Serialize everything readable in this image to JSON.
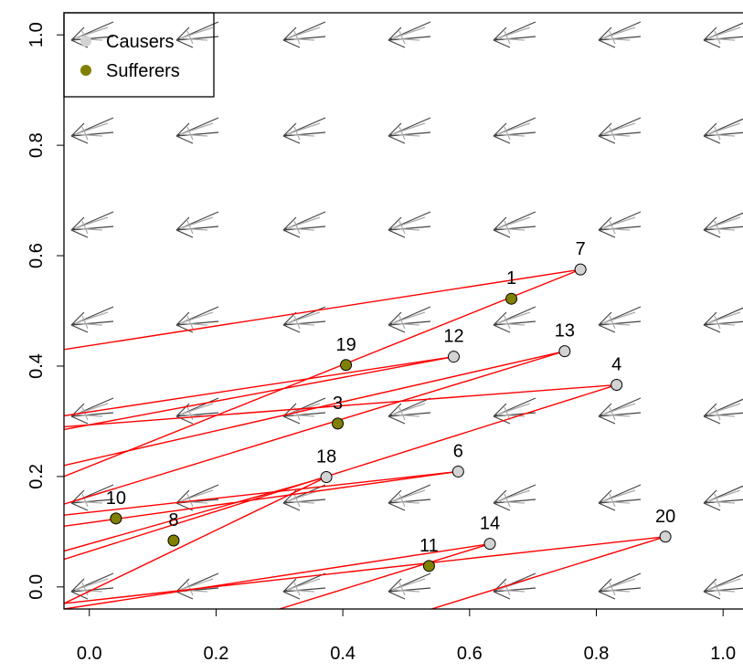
{
  "chart_data": {
    "type": "scatter",
    "xlim": [
      -0.04,
      1.03
    ],
    "ylim": [
      -0.04,
      1.04
    ],
    "xticks": [
      {
        "value": 0,
        "label": "0.0"
      },
      {
        "value": 0.2,
        "label": "0.2"
      },
      {
        "value": 0.4,
        "label": "0.4"
      },
      {
        "value": 0.6,
        "label": "0.6"
      },
      {
        "value": 0.8,
        "label": "0.8"
      },
      {
        "value": 1,
        "label": "1.0"
      }
    ],
    "yticks": [
      {
        "value": 0,
        "label": "0.0"
      },
      {
        "value": 0.2,
        "label": "0.2"
      },
      {
        "value": 0.4,
        "label": "0.4"
      },
      {
        "value": 0.6,
        "label": "0.6"
      },
      {
        "value": 0.8,
        "label": "0.8"
      },
      {
        "value": 1,
        "label": "1.0"
      }
    ],
    "legend": "topleft",
    "series": [
      {
        "name": "Causers",
        "color": "#d3d3d3",
        "x": [
          0.775,
          0.575,
          0.75,
          0.832,
          0.582,
          0.374,
          0.632,
          0.909
        ],
        "values": [
          0.575,
          0.417,
          0.427,
          0.366,
          0.209,
          0.199,
          0.078,
          0.091
        ],
        "point_labels": [
          "7",
          "12",
          "13",
          "4",
          "6",
          "18",
          "14",
          "20"
        ]
      },
      {
        "name": "Sufferers",
        "color": "#808000",
        "x": [
          0.666,
          0.405,
          0.392,
          0.042,
          0.133,
          0.536
        ],
        "values": [
          0.522,
          0.402,
          0.296,
          0.124,
          0.084,
          0.038
        ],
        "point_labels": [
          "1",
          "19",
          "3",
          "10",
          "8",
          "11"
        ]
      }
    ],
    "link_color": "#ff0000",
    "links": [
      {
        "x": [
          0.775,
          -0.04
        ],
        "y": [
          0.575,
          0.43
        ]
      },
      {
        "x": [
          0.775,
          -0.04
        ],
        "y": [
          0.575,
          0.2
        ]
      },
      {
        "x": [
          0.575,
          -0.04
        ],
        "y": [
          0.417,
          0.31
        ]
      },
      {
        "x": [
          0.575,
          -0.04
        ],
        "y": [
          0.417,
          0.285
        ]
      },
      {
        "x": [
          0.75,
          -0.04
        ],
        "y": [
          0.427,
          0.15
        ]
      },
      {
        "x": [
          0.75,
          -0.04
        ],
        "y": [
          0.427,
          0.22
        ]
      },
      {
        "x": [
          0.832,
          -0.04
        ],
        "y": [
          0.366,
          0.29
        ]
      },
      {
        "x": [
          0.832,
          -0.04
        ],
        "y": [
          0.366,
          0.05
        ]
      },
      {
        "x": [
          0.582,
          -0.04
        ],
        "y": [
          0.209,
          0.11
        ]
      },
      {
        "x": [
          0.582,
          -0.04
        ],
        "y": [
          0.209,
          0.13
        ]
      },
      {
        "x": [
          0.374,
          -0.04
        ],
        "y": [
          0.199,
          0.065
        ]
      },
      {
        "x": [
          0.374,
          -0.04
        ],
        "y": [
          0.199,
          -0.03
        ]
      },
      {
        "x": [
          0.632,
          -0.04
        ],
        "y": [
          0.078,
          -0.04
        ]
      },
      {
        "x": [
          0.632,
          0.3
        ],
        "y": [
          0.078,
          -0.04
        ]
      },
      {
        "x": [
          0.909,
          -0.04
        ],
        "y": [
          0.091,
          -0.03
        ]
      },
      {
        "x": [
          0.909,
          0.54
        ],
        "y": [
          0.091,
          -0.04
        ]
      }
    ]
  }
}
